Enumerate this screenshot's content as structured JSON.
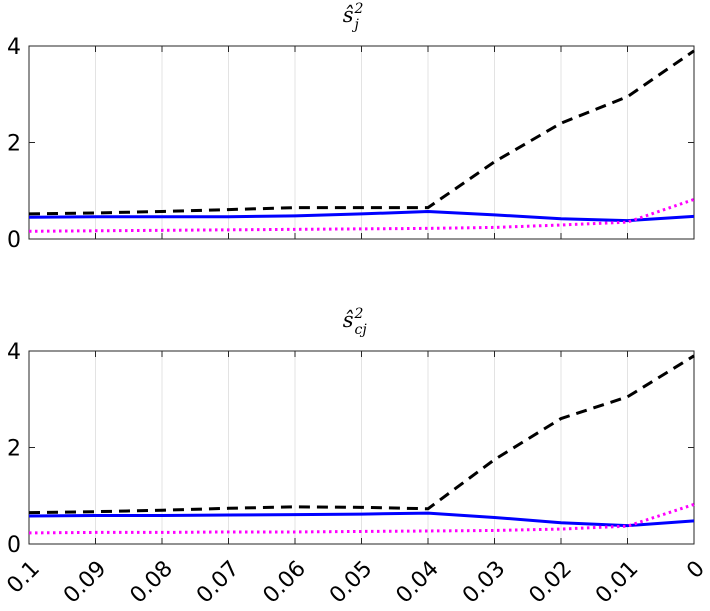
{
  "chart_data": [
    {
      "type": "line",
      "title": {
        "base": "ŝ",
        "sup": "2",
        "sub": "j"
      },
      "x": [
        "0.1",
        "0.09",
        "0.08",
        "0.07",
        "0.06",
        "0.05",
        "0.04",
        "0.03",
        "0.02",
        "0.01",
        "0"
      ],
      "xticks": [
        "0.1",
        "0.09",
        "0.08",
        "0.07",
        "0.06",
        "0.05",
        "0.04",
        "0.03",
        "0.02",
        "0.01",
        "0"
      ],
      "yticks": [
        "0",
        "2",
        "4"
      ],
      "ylim": [
        0,
        4
      ],
      "grid": "vertical",
      "show_xtick_labels": false,
      "series": [
        {
          "style": "dashed",
          "color": "#000000",
          "values": [
            0.52,
            0.54,
            0.57,
            0.61,
            0.65,
            0.65,
            0.65,
            1.6,
            2.4,
            2.95,
            3.9
          ]
        },
        {
          "style": "solid",
          "color": "#0000ff",
          "values": [
            0.45,
            0.46,
            0.46,
            0.46,
            0.48,
            0.52,
            0.57,
            0.5,
            0.42,
            0.38,
            0.47
          ]
        },
        {
          "style": "dotted",
          "color": "#ff00ff",
          "values": [
            0.16,
            0.17,
            0.18,
            0.19,
            0.2,
            0.21,
            0.22,
            0.24,
            0.29,
            0.35,
            0.82
          ]
        }
      ]
    },
    {
      "type": "line",
      "title": {
        "base": "ŝ",
        "sup": "2",
        "sub": "cj"
      },
      "x": [
        "0.1",
        "0.09",
        "0.08",
        "0.07",
        "0.06",
        "0.05",
        "0.04",
        "0.03",
        "0.02",
        "0.01",
        "0"
      ],
      "xticks": [
        "0.1",
        "0.09",
        "0.08",
        "0.07",
        "0.06",
        "0.05",
        "0.04",
        "0.03",
        "0.02",
        "0.01",
        "0"
      ],
      "yticks": [
        "0",
        "2",
        "4"
      ],
      "ylim": [
        0,
        4
      ],
      "grid": "vertical",
      "show_xtick_labels": true,
      "series": [
        {
          "style": "dashed",
          "color": "#000000",
          "values": [
            0.65,
            0.67,
            0.7,
            0.74,
            0.77,
            0.76,
            0.73,
            1.75,
            2.6,
            3.05,
            3.9
          ]
        },
        {
          "style": "solid",
          "color": "#0000ff",
          "values": [
            0.58,
            0.59,
            0.59,
            0.6,
            0.61,
            0.62,
            0.64,
            0.55,
            0.44,
            0.38,
            0.48
          ]
        },
        {
          "style": "dotted",
          "color": "#ff00ff",
          "values": [
            0.23,
            0.24,
            0.24,
            0.25,
            0.25,
            0.26,
            0.27,
            0.28,
            0.31,
            0.37,
            0.82
          ]
        }
      ]
    }
  ]
}
